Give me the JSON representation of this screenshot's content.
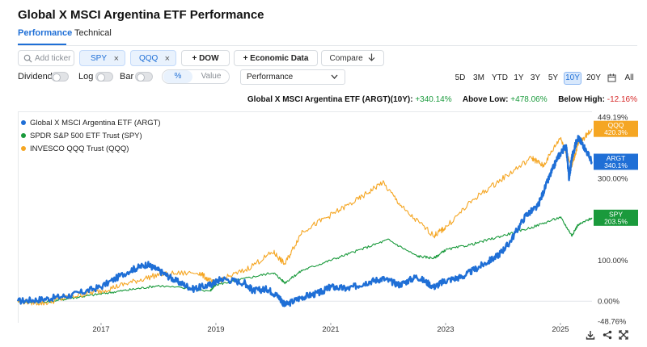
{
  "page": {
    "title": "Global X MSCI Argentina ETF Performance",
    "tabs": [
      {
        "label": "Performance",
        "active": true
      },
      {
        "label": "Technical",
        "active": false
      }
    ]
  },
  "toolbar": {
    "add_ticker_placeholder": "Add ticker",
    "chips": [
      {
        "label": "SPY",
        "close": "×"
      },
      {
        "label": "QQQ",
        "close": "×"
      }
    ],
    "dow_label": "+ DOW",
    "economic_data_label": "+ Economic Data",
    "compare_label": "Compare",
    "toggles": [
      {
        "label": "Dividend",
        "on": false
      },
      {
        "label": "Log",
        "on": false
      },
      {
        "label": "Bar",
        "on": false
      }
    ],
    "mode_options": [
      "%",
      "Value"
    ],
    "mode_selected": "%",
    "performance_select": "Performance",
    "ranges": [
      "5D",
      "3M",
      "YTD",
      "1Y",
      "3Y",
      "5Y",
      "10Y",
      "20Y",
      "All"
    ],
    "range_active": "10Y"
  },
  "stats": {
    "label": "Global X MSCI Argentina ETF (ARGT)(10Y):",
    "change": "+340.14%",
    "above_low_label": "Above Low:",
    "above_low": "+478.06%",
    "below_high_label": "Below High:",
    "below_high": "-12.16%"
  },
  "chart_data": {
    "type": "line",
    "title": "",
    "xlabel": "",
    "ylabel": "",
    "x_ticks": [
      "2017",
      "2019",
      "2021",
      "2023",
      "2025"
    ],
    "x_tick_years": [
      2017,
      2019,
      2021,
      2023,
      2025
    ],
    "x_range": [
      2015.55,
      2025.55
    ],
    "y_ticks": [
      "449.19%",
      "300.00%",
      "100.00%",
      "0.00%",
      "-48.76%"
    ],
    "y_tick_values": [
      449.19,
      300,
      100,
      0,
      -48.76
    ],
    "y_range": [
      -48.76,
      449.19
    ],
    "grid": false,
    "legend_position": "top-left",
    "series": [
      {
        "name": "Global X MSCI Argentina ETF (ARGT)",
        "color": "#1f6fd6",
        "end_label": "ARGT",
        "end_value_label": "340.1%",
        "x": [
          2015.55,
          2016.0,
          2016.5,
          2017.0,
          2017.5,
          2017.8,
          2018.0,
          2018.3,
          2018.6,
          2018.9,
          2019.1,
          2019.5,
          2019.65,
          2019.9,
          2020.1,
          2020.2,
          2020.5,
          2020.8,
          2021.0,
          2021.3,
          2021.6,
          2021.9,
          2022.2,
          2022.5,
          2022.8,
          2023.0,
          2023.3,
          2023.6,
          2023.9,
          2024.1,
          2024.4,
          2024.6,
          2024.8,
          2024.95,
          2025.1,
          2025.15,
          2025.2,
          2025.3,
          2025.4,
          2025.55
        ],
        "values": [
          0,
          5,
          15,
          35,
          75,
          90,
          75,
          50,
          30,
          40,
          55,
          45,
          25,
          30,
          10,
          -10,
          10,
          20,
          35,
          30,
          45,
          55,
          40,
          60,
          35,
          50,
          60,
          85,
          110,
          140,
          210,
          230,
          300,
          350,
          380,
          300,
          350,
          400,
          380,
          340
        ]
      },
      {
        "name": "SPDR S&P 500 ETF Trust (SPY)",
        "color": "#1a9a3c",
        "end_label": "SPY",
        "end_value_label": "203.5%",
        "x": [
          2015.55,
          2016.0,
          2016.5,
          2017.0,
          2017.5,
          2018.0,
          2018.9,
          2019.0,
          2019.5,
          2020.0,
          2020.2,
          2020.5,
          2021.0,
          2021.5,
          2022.0,
          2022.5,
          2022.8,
          2023.0,
          2023.5,
          2024.0,
          2024.5,
          2025.0,
          2025.2,
          2025.3,
          2025.55
        ],
        "values": [
          0,
          -3,
          8,
          18,
          28,
          38,
          25,
          40,
          55,
          70,
          45,
          75,
          100,
          125,
          150,
          110,
          105,
          125,
          140,
          160,
          180,
          205,
          160,
          185,
          203.5
        ]
      },
      {
        "name": "INVESCO QQQ Trust (QQQ)",
        "color": "#f5a623",
        "end_label": "QQQ",
        "end_value_label": "420.3%",
        "x": [
          2015.55,
          2016.0,
          2016.5,
          2017.0,
          2017.5,
          2018.0,
          2018.7,
          2018.95,
          2019.5,
          2020.0,
          2020.2,
          2020.5,
          2021.0,
          2021.5,
          2021.9,
          2022.3,
          2022.8,
          2023.0,
          2023.5,
          2024.0,
          2024.5,
          2024.7,
          2025.0,
          2025.2,
          2025.3,
          2025.55
        ],
        "values": [
          0,
          -5,
          12,
          25,
          45,
          65,
          70,
          45,
          75,
          120,
          90,
          170,
          210,
          250,
          290,
          220,
          160,
          180,
          250,
          300,
          350,
          330,
          400,
          330,
          380,
          420.3
        ]
      }
    ]
  },
  "footer": {
    "icons": [
      "download-icon",
      "share-icon",
      "fullscreen-icon"
    ]
  }
}
